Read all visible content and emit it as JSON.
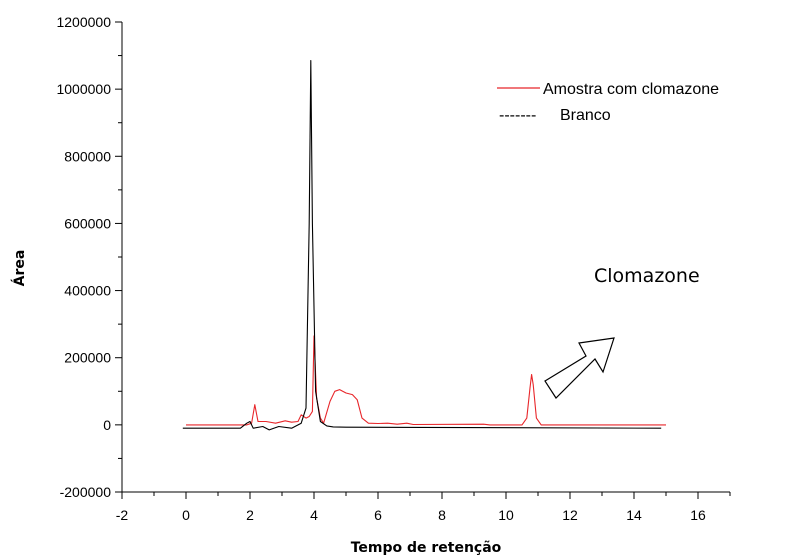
{
  "chart_data": {
    "type": "line",
    "xlabel": "Tempo de retenção",
    "ylabel": "Área",
    "xlim": [
      -2,
      17
    ],
    "ylim": [
      -200000,
      1200000
    ],
    "x_ticks": [
      -2,
      0,
      2,
      4,
      6,
      8,
      10,
      12,
      14,
      16
    ],
    "y_ticks": [
      -200000,
      0,
      200000,
      400000,
      600000,
      800000,
      1000000,
      1200000
    ],
    "annotation": "Clomazone",
    "legend_position": "top-right",
    "series": [
      {
        "name": "Amostra com clomazone",
        "color": "#e8262a",
        "legend_prefix": "",
        "points": [
          [
            0.0,
            0
          ],
          [
            1.9,
            0
          ],
          [
            2.05,
            5000
          ],
          [
            2.15,
            60000
          ],
          [
            2.25,
            10000
          ],
          [
            2.5,
            10000
          ],
          [
            2.8,
            5000
          ],
          [
            3.1,
            12000
          ],
          [
            3.3,
            8000
          ],
          [
            3.5,
            10000
          ],
          [
            3.6,
            30000
          ],
          [
            3.75,
            20000
          ],
          [
            3.85,
            25000
          ],
          [
            3.95,
            40000
          ],
          [
            4.0,
            265000
          ],
          [
            4.08,
            80000
          ],
          [
            4.2,
            20000
          ],
          [
            4.3,
            5000
          ],
          [
            4.5,
            70000
          ],
          [
            4.65,
            100000
          ],
          [
            4.8,
            105000
          ],
          [
            5.0,
            95000
          ],
          [
            5.2,
            90000
          ],
          [
            5.35,
            75000
          ],
          [
            5.5,
            20000
          ],
          [
            5.7,
            5000
          ],
          [
            6.0,
            4000
          ],
          [
            6.3,
            5000
          ],
          [
            6.6,
            2000
          ],
          [
            6.9,
            5000
          ],
          [
            7.1,
            1000
          ],
          [
            9.3,
            2000
          ],
          [
            9.5,
            0
          ],
          [
            10.5,
            0
          ],
          [
            10.65,
            20000
          ],
          [
            10.75,
            110000
          ],
          [
            10.8,
            150000
          ],
          [
            10.85,
            120000
          ],
          [
            10.95,
            20000
          ],
          [
            11.1,
            0
          ],
          [
            15.0,
            0
          ]
        ]
      },
      {
        "name": "Branco",
        "color": "#000000",
        "legend_prefix": "-------",
        "points": [
          [
            -0.1,
            -10000
          ],
          [
            1.7,
            -10000
          ],
          [
            1.9,
            5000
          ],
          [
            2.0,
            10000
          ],
          [
            2.1,
            -10000
          ],
          [
            2.4,
            -5000
          ],
          [
            2.6,
            -15000
          ],
          [
            2.9,
            -5000
          ],
          [
            3.3,
            -10000
          ],
          [
            3.6,
            5000
          ],
          [
            3.75,
            50000
          ],
          [
            3.85,
            600000
          ],
          [
            3.9,
            1085000
          ],
          [
            3.95,
            600000
          ],
          [
            4.05,
            100000
          ],
          [
            4.2,
            10000
          ],
          [
            4.4,
            -3000
          ],
          [
            4.6,
            -6000
          ],
          [
            5.0,
            -7000
          ],
          [
            14.85,
            -10000
          ]
        ]
      }
    ]
  }
}
